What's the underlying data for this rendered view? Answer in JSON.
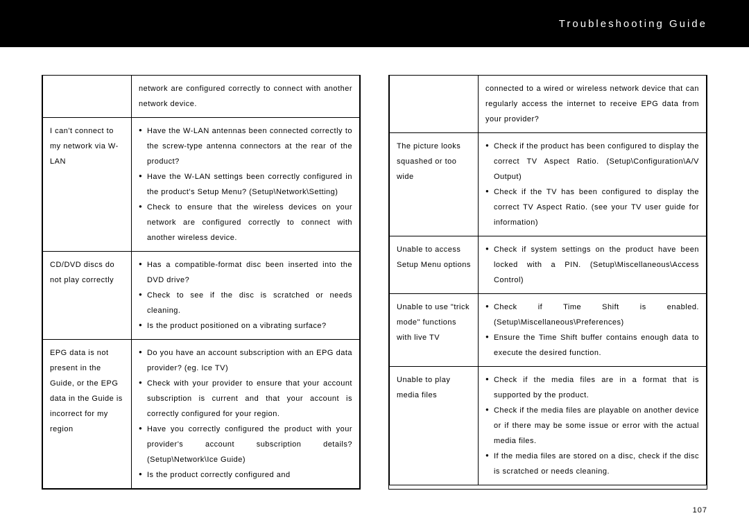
{
  "header": {
    "title": "Troubleshooting Guide"
  },
  "page_number": "107",
  "left": {
    "row0": {
      "cont": "network are configured correctly to connect with another network device."
    },
    "row1": {
      "issue": "I can't connect to my network via W-LAN",
      "items": [
        "Have the W-LAN antennas been connected correctly to the screw-type antenna connectors at the rear of the product?",
        "Have the W-LAN settings been correctly configured in the product's Setup Menu? (Setup\\Network\\Setting)",
        "Check to ensure that the wireless devices on your network are configured correctly to connect with another wireless device."
      ]
    },
    "row2": {
      "issue": "CD/DVD discs do not play correctly",
      "items": [
        "Has a compatible-format disc been inserted into the DVD drive?",
        "Check to see if the disc is scratched or needs cleaning.",
        "Is the product positioned on a vibrating surface?"
      ]
    },
    "row3": {
      "issue": "EPG data is not present in the Guide, or the EPG data in the Guide is incorrect for my region",
      "items": [
        "Do you have an account subscription with an EPG data provider? (eg. Ice TV)",
        "Check with your provider to ensure that your account subscription is current and that your account is correctly configured for your region.",
        "Have you correctly configured the product with your provider's account subscription details? (Setup\\Network\\Ice Guide)",
        "Is the product correctly configured and"
      ]
    }
  },
  "right": {
    "row0": {
      "cont": "connected to a wired or wireless network device that can regularly access the internet to receive EPG data from your provider?"
    },
    "row1": {
      "issue": "The picture looks squashed or too wide",
      "items": [
        "Check if the product has been configured to display the correct TV Aspect Ratio. (Setup\\Configuration\\A/V Output)",
        "Check if the TV has been configured to display the correct TV Aspect Ratio. (see your TV user guide for information)"
      ]
    },
    "row2": {
      "issue": "Unable to access Setup Menu options",
      "items": [
        "Check if system settings on the product have been locked with a PIN. (Setup\\Miscellaneous\\Access Control)"
      ]
    },
    "row3": {
      "issue": "Unable to use \"trick mode\" functions with live TV",
      "items": [
        "Check if Time Shift is enabled. (Setup\\Miscellaneous\\Preferences)",
        "Ensure the Time Shift buffer contains enough data to execute the desired function."
      ]
    },
    "row4": {
      "issue": "Unable to play media files",
      "items": [
        "Check if the media files are in a format that is supported by the product.",
        "Check if the media files are playable on another device or if there may be some issue or error with the actual media files.",
        "If the media files are stored on a disc, check if the disc is scratched or needs cleaning."
      ]
    }
  }
}
